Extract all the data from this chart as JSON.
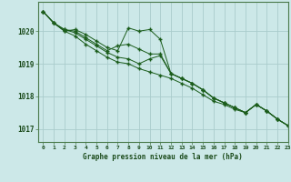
{
  "title": "Graphe pression niveau de la mer (hPa)",
  "background_color": "#cce8e8",
  "grid_color": "#aacccc",
  "line_color": "#1a5c1a",
  "xlim": [
    -0.5,
    23
  ],
  "ylim": [
    1016.6,
    1020.9
  ],
  "yticks": [
    1017,
    1018,
    1019,
    1020
  ],
  "xticks": [
    0,
    1,
    2,
    3,
    4,
    5,
    6,
    7,
    8,
    9,
    10,
    11,
    12,
    13,
    14,
    15,
    16,
    17,
    18,
    19,
    20,
    21,
    22,
    23
  ],
  "series": [
    [
      1020.6,
      1020.25,
      1020.0,
      1019.85,
      1019.6,
      1019.4,
      1019.2,
      1019.05,
      1019.0,
      1018.85,
      1018.75,
      1018.65,
      1018.55,
      1018.4,
      1018.25,
      1018.05,
      1017.85,
      1017.75,
      1017.6,
      1017.5,
      1017.75,
      1017.55,
      1017.3,
      1017.1
    ],
    [
      1020.6,
      1020.25,
      1020.0,
      1020.05,
      1019.9,
      1019.7,
      1019.5,
      1019.4,
      1020.1,
      1020.0,
      1020.05,
      1019.75,
      1018.7,
      1018.55,
      1018.4,
      1018.2,
      1017.95,
      1017.8,
      1017.65,
      1017.5,
      1017.75,
      1017.55,
      1017.3,
      1017.1
    ],
    [
      1020.6,
      1020.25,
      1020.05,
      1020.0,
      1019.8,
      1019.6,
      1019.4,
      1019.55,
      1019.6,
      1019.45,
      1019.3,
      1019.3,
      1018.7,
      1018.55,
      1018.4,
      1018.2,
      1017.95,
      1017.8,
      1017.65,
      1017.5,
      1017.75,
      1017.55,
      1017.3,
      1017.1
    ],
    [
      1020.6,
      1020.25,
      1020.05,
      1019.95,
      1019.75,
      1019.55,
      1019.35,
      1019.2,
      1019.15,
      1019.0,
      1019.15,
      1019.25,
      1018.7,
      1018.55,
      1018.4,
      1018.2,
      1017.95,
      1017.8,
      1017.65,
      1017.5,
      1017.75,
      1017.55,
      1017.3,
      1017.1
    ]
  ]
}
